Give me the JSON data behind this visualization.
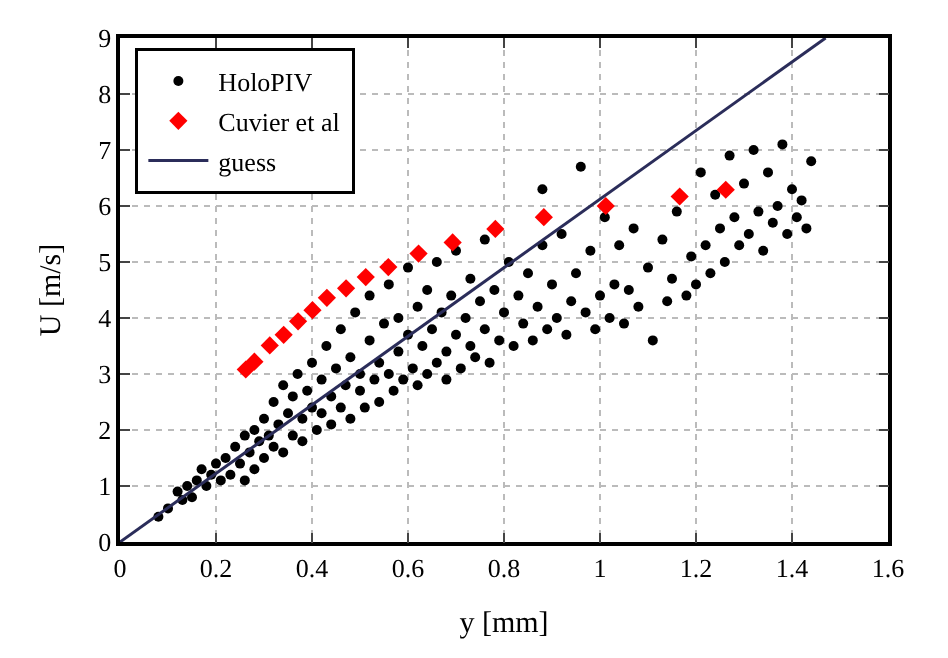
{
  "chart_data": {
    "type": "scatter",
    "xlabel": "y [mm]",
    "ylabel": "U [m/s]",
    "xlim": [
      0,
      1.6
    ],
    "xticks": [
      0,
      0.2,
      0.4,
      0.6,
      0.8,
      1,
      1.2,
      1.4,
      1.6
    ],
    "ylim": [
      0,
      9
    ],
    "yticks": [
      0,
      1,
      2,
      3,
      4,
      5,
      6,
      7,
      8,
      9
    ],
    "grid": true,
    "legend": "top left",
    "series": [
      {
        "name": "HoloPIV",
        "color": "#000000",
        "marker": "circle",
        "x": [
          0.08,
          0.1,
          0.12,
          0.13,
          0.14,
          0.15,
          0.16,
          0.17,
          0.18,
          0.19,
          0.2,
          0.21,
          0.22,
          0.23,
          0.24,
          0.25,
          0.26,
          0.26,
          0.27,
          0.28,
          0.28,
          0.29,
          0.3,
          0.3,
          0.31,
          0.32,
          0.32,
          0.33,
          0.34,
          0.34,
          0.35,
          0.36,
          0.36,
          0.37,
          0.38,
          0.38,
          0.39,
          0.4,
          0.4,
          0.41,
          0.42,
          0.42,
          0.43,
          0.44,
          0.44,
          0.45,
          0.46,
          0.46,
          0.47,
          0.48,
          0.48,
          0.49,
          0.5,
          0.5,
          0.51,
          0.52,
          0.52,
          0.53,
          0.54,
          0.54,
          0.55,
          0.56,
          0.56,
          0.57,
          0.58,
          0.58,
          0.59,
          0.6,
          0.6,
          0.61,
          0.62,
          0.62,
          0.63,
          0.64,
          0.64,
          0.65,
          0.66,
          0.66,
          0.67,
          0.68,
          0.68,
          0.69,
          0.7,
          0.7,
          0.71,
          0.72,
          0.73,
          0.73,
          0.74,
          0.75,
          0.76,
          0.76,
          0.77,
          0.78,
          0.79,
          0.8,
          0.81,
          0.82,
          0.83,
          0.84,
          0.85,
          0.86,
          0.87,
          0.88,
          0.88,
          0.89,
          0.9,
          0.91,
          0.92,
          0.93,
          0.94,
          0.95,
          0.96,
          0.97,
          0.98,
          0.99,
          1.0,
          1.01,
          1.02,
          1.03,
          1.04,
          1.05,
          1.06,
          1.07,
          1.08,
          1.1,
          1.11,
          1.13,
          1.14,
          1.15,
          1.16,
          1.18,
          1.19,
          1.2,
          1.21,
          1.22,
          1.23,
          1.24,
          1.25,
          1.26,
          1.27,
          1.28,
          1.29,
          1.3,
          1.31,
          1.32,
          1.33,
          1.34,
          1.35,
          1.36,
          1.37,
          1.38,
          1.39,
          1.4,
          1.41,
          1.42,
          1.43,
          1.44
        ],
        "values": [
          0.45,
          0.6,
          0.9,
          0.75,
          1.0,
          0.8,
          1.1,
          1.3,
          1.0,
          1.2,
          1.4,
          1.1,
          1.5,
          1.2,
          1.7,
          1.4,
          1.9,
          1.1,
          1.6,
          2.0,
          1.3,
          1.8,
          2.2,
          1.5,
          1.9,
          2.5,
          1.7,
          2.1,
          2.8,
          1.6,
          2.3,
          1.9,
          2.6,
          3.0,
          2.2,
          1.8,
          2.7,
          2.4,
          3.2,
          2.0,
          2.9,
          2.3,
          3.5,
          2.6,
          2.1,
          3.1,
          2.4,
          3.8,
          2.8,
          2.2,
          3.3,
          4.1,
          2.7,
          3.0,
          2.4,
          3.6,
          4.4,
          2.9,
          3.2,
          2.5,
          3.9,
          3.0,
          4.6,
          2.7,
          3.4,
          4.0,
          2.9,
          3.7,
          4.9,
          3.1,
          2.8,
          4.2,
          3.5,
          4.5,
          3.0,
          3.8,
          3.2,
          5.0,
          4.1,
          3.4,
          2.9,
          4.4,
          3.7,
          5.2,
          3.1,
          4.0,
          3.5,
          4.7,
          3.3,
          4.3,
          3.8,
          5.4,
          3.2,
          4.5,
          3.6,
          4.1,
          5.0,
          3.5,
          4.4,
          3.9,
          4.8,
          3.6,
          4.2,
          5.3,
          6.3,
          3.8,
          4.6,
          4.0,
          5.5,
          3.7,
          4.3,
          4.8,
          6.7,
          4.1,
          5.2,
          3.8,
          4.4,
          5.8,
          4.0,
          4.6,
          5.3,
          3.9,
          4.5,
          5.6,
          4.2,
          4.9,
          3.6,
          5.4,
          4.3,
          4.7,
          5.9,
          4.4,
          5.1,
          4.6,
          6.6,
          5.3,
          4.8,
          6.2,
          5.6,
          5.0,
          6.9,
          5.8,
          5.3,
          6.4,
          5.5,
          7.0,
          5.9,
          5.2,
          6.6,
          5.7,
          6.0,
          7.1,
          5.5,
          6.3,
          5.8,
          6.1,
          5.6,
          6.8
        ]
      },
      {
        "name": "Cuvier et al",
        "color": "#ff0000",
        "marker": "diamond",
        "x": [
          0.262,
          0.28,
          0.312,
          0.341,
          0.371,
          0.401,
          0.431,
          0.471,
          0.512,
          0.559,
          0.622,
          0.693,
          0.782,
          0.883,
          1.012,
          1.166,
          1.262
        ],
        "values": [
          3.08,
          3.22,
          3.51,
          3.7,
          3.94,
          4.14,
          4.36,
          4.53,
          4.73,
          4.91,
          5.15,
          5.35,
          5.59,
          5.8,
          6.0,
          6.17,
          6.29
        ]
      },
      {
        "name": "guess",
        "type": "line",
        "color": "#2b2d5a",
        "marker": "none",
        "x": [
          0,
          1.47
        ],
        "values": [
          0,
          9
        ]
      }
    ]
  }
}
